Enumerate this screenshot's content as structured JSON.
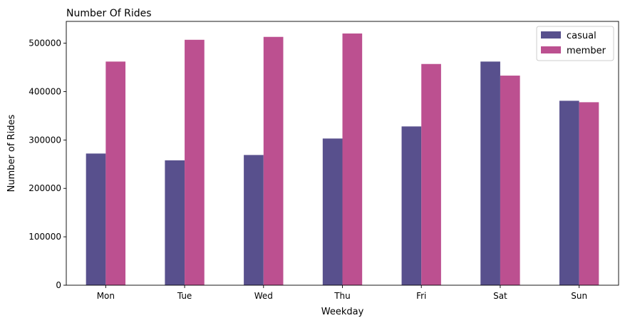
{
  "chart_data": {
    "type": "bar",
    "title": "Number Of Rides",
    "xlabel": "Weekday",
    "ylabel": "Number of Rides",
    "categories": [
      "Mon",
      "Tue",
      "Wed",
      "Thu",
      "Fri",
      "Sat",
      "Sun"
    ],
    "series": [
      {
        "name": "casual",
        "color": "#58508d",
        "values": [
          272000,
          258000,
          269000,
          303000,
          328000,
          462000,
          381000
        ]
      },
      {
        "name": "member",
        "color": "#bc5090",
        "values": [
          462000,
          507000,
          513000,
          520000,
          457000,
          433000,
          378000
        ]
      }
    ],
    "yticks": [
      0,
      100000,
      200000,
      300000,
      400000,
      500000
    ],
    "ytick_labels": [
      "0",
      "100000",
      "200000",
      "300000",
      "400000",
      "500000"
    ],
    "ylim": [
      0,
      545000
    ],
    "grid": false,
    "legend_position": "top-right"
  }
}
